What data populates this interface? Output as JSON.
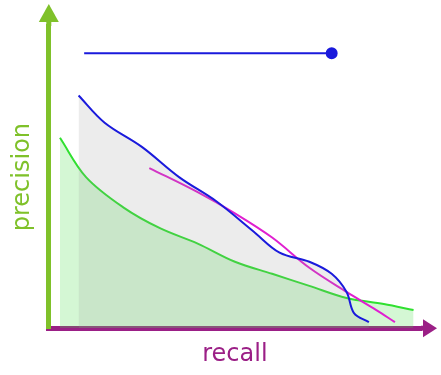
{
  "chart_data": {
    "type": "line",
    "x_label": "recall",
    "y_label": "precision",
    "xlim": [
      0,
      1
    ],
    "ylim": [
      0,
      1
    ],
    "tick_labels": false,
    "grid": false,
    "series": [
      {
        "color": "#1a1adc",
        "marker": "end",
        "x": [
          0.095,
          0.76
        ],
        "values": [
          0.91,
          0.91
        ]
      },
      {
        "color": "#1a1adc",
        "x": [
          0.08,
          0.15,
          0.25,
          0.35,
          0.45,
          0.55,
          0.62,
          0.7,
          0.76,
          0.8,
          0.82,
          0.86
        ],
        "values": [
          0.77,
          0.68,
          0.6,
          0.5,
          0.42,
          0.32,
          0.25,
          0.22,
          0.18,
          0.12,
          0.05,
          0.02
        ]
      },
      {
        "color": "#e020d0",
        "x": [
          0.27,
          0.4,
          0.5,
          0.6,
          0.7,
          0.8,
          0.88,
          0.93
        ],
        "values": [
          0.53,
          0.45,
          0.38,
          0.3,
          0.2,
          0.12,
          0.06,
          0.02
        ]
      },
      {
        "color": "#30e030",
        "x": [
          0.03,
          0.1,
          0.2,
          0.3,
          0.4,
          0.5,
          0.6,
          0.7,
          0.8,
          0.9,
          0.98
        ],
        "values": [
          0.63,
          0.5,
          0.4,
          0.33,
          0.28,
          0.22,
          0.18,
          0.14,
          0.1,
          0.08,
          0.06
        ]
      }
    ]
  }
}
